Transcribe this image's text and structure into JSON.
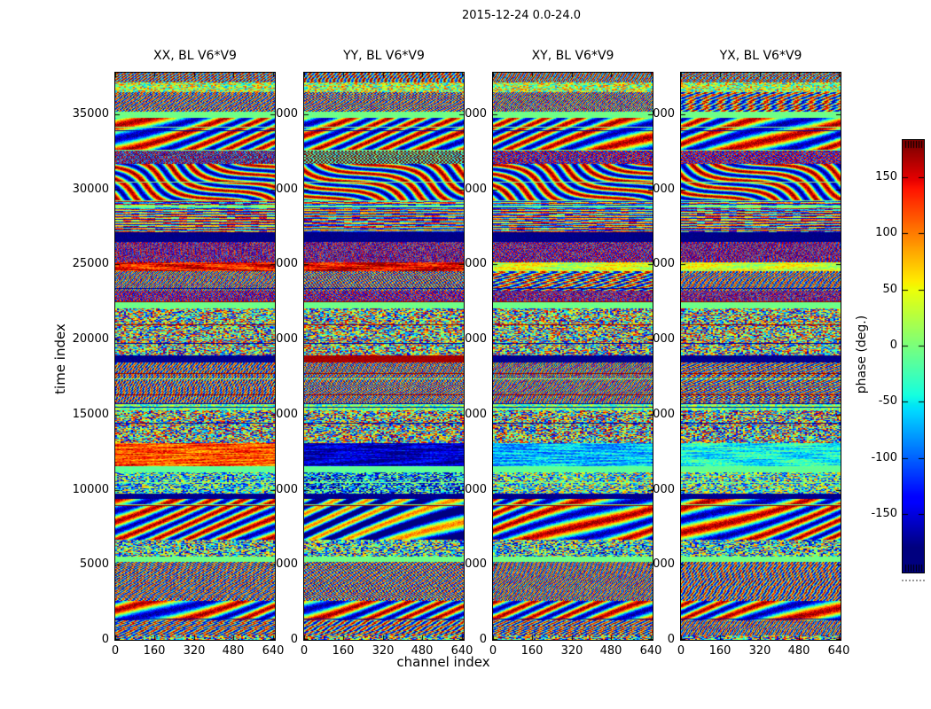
{
  "figure": {
    "title": "2015-12-24 0.0-24.0",
    "background": "#ffffff",
    "text_color": "#000000"
  },
  "chart_data": {
    "type": "heatmap",
    "title": "2015-12-24 0.0-24.0",
    "xlabel": "channel index",
    "ylabel": "time index",
    "colormap": "jet",
    "grid": false,
    "xlim": [
      0,
      644
    ],
    "ylim": [
      0,
      37760
    ],
    "xticks": [
      0,
      160,
      320,
      480,
      640
    ],
    "yticks": [
      0,
      5000,
      10000,
      15000,
      20000,
      25000,
      30000,
      35000
    ],
    "panels": [
      {
        "title": "XX, BL V6*V9"
      },
      {
        "title": "YY, BL V6*V9"
      },
      {
        "title": "XY, BL V6*V9"
      },
      {
        "title": "YX, BL V6*V9"
      }
    ],
    "colorbar": {
      "label": "phase (deg.)",
      "ticks": [
        150,
        100,
        50,
        0,
        -50,
        -100,
        -150
      ],
      "vmin": -180,
      "vmax": 180,
      "top_color": "#8b0000",
      "bottom_color": "#00008b"
    },
    "bands": [
      {
        "t0": 0,
        "t1": 350,
        "type": "speckle",
        "bias": -10,
        "spread": 340
      },
      {
        "t0": 350,
        "t1": 1300,
        "type": "fringe"
      },
      {
        "t0": 1300,
        "t1": 2600,
        "type": "wave"
      },
      {
        "t0": 2600,
        "t1": 5200,
        "type": "fringe"
      },
      {
        "t0": 5200,
        "t1": 5600,
        "type": "solid",
        "bias": -5
      },
      {
        "t0": 5600,
        "t1": 6700,
        "type": "speckle",
        "bias": -30,
        "spread": 300
      },
      {
        "t0": 6700,
        "t1": 9400,
        "type": "wave",
        "bias": [
          0,
          -70,
          0,
          0
        ]
      },
      {
        "t0": 9400,
        "t1": 9750,
        "type": "solid",
        "bias": -176
      },
      {
        "t0": 9750,
        "t1": 11200,
        "type": "speckle",
        "bias": [
          -40,
          -80,
          -20,
          -20
        ],
        "spread": 260
      },
      {
        "t0": 11200,
        "t1": 11600,
        "type": "solid",
        "bias": -12
      },
      {
        "t0": 11600,
        "t1": 13100,
        "type": "smear",
        "bias": [
          115,
          -160,
          -70,
          -45
        ]
      },
      {
        "t0": 13100,
        "t1": 15300,
        "type": "speckle",
        "bias": 0,
        "spread": 340
      },
      {
        "t0": 15300,
        "t1": 15750,
        "type": "speckle",
        "bias": -5,
        "spread": 130
      },
      {
        "t0": 15750,
        "t1": 18500,
        "type": "fringe"
      },
      {
        "t0": 18500,
        "t1": 18950,
        "type": "solid",
        "bias": [
          -176,
          168,
          -176,
          -176
        ]
      },
      {
        "t0": 18950,
        "t1": 22100,
        "type": "speckle",
        "bias": 0,
        "spread": 330
      },
      {
        "t0": 22100,
        "t1": 22500,
        "type": "solid",
        "bias": -6
      },
      {
        "t0": 22500,
        "t1": 23300,
        "type": "check"
      },
      {
        "t0": 23300,
        "t1": 24600,
        "type": "fringe"
      },
      {
        "t0": 24600,
        "t1": 25150,
        "type": "smear",
        "bias": [
          140,
          150,
          35,
          35
        ]
      },
      {
        "t0": 25150,
        "t1": 26500,
        "type": "check"
      },
      {
        "t0": 26500,
        "t1": 27150,
        "type": "solid",
        "bias": -178
      },
      {
        "t0": 27150,
        "t1": 29300,
        "type": "hstripe"
      },
      {
        "t0": 29300,
        "t1": 31700,
        "type": "swirl"
      },
      {
        "t0": 31700,
        "t1": 32650,
        "type": "check",
        "bias": [
          40,
          150,
          0,
          0
        ]
      },
      {
        "t0": 32650,
        "t1": 34800,
        "type": "wave"
      },
      {
        "t0": 34800,
        "t1": 35200,
        "type": "solid",
        "bias": -5
      },
      {
        "t0": 35200,
        "t1": 36500,
        "type": "fringe"
      },
      {
        "t0": 36500,
        "t1": 37150,
        "type": "speckle",
        "bias": 25,
        "spread": 210
      },
      {
        "t0": 37150,
        "t1": 37760,
        "type": "fringe",
        "bias": 30
      }
    ]
  }
}
